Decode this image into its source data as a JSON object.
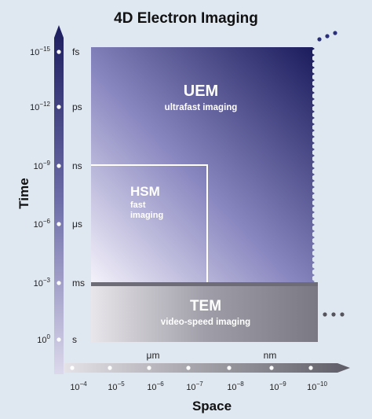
{
  "title": "4D Electron Imaging",
  "time_axis": {
    "label": "Time",
    "ticks": [
      {
        "base": "10",
        "exp": "−15",
        "unit": "fs"
      },
      {
        "base": "10",
        "exp": "−12",
        "unit": "ps"
      },
      {
        "base": "10",
        "exp": "−9",
        "unit": "ns"
      },
      {
        "base": "10",
        "exp": "−6",
        "unit": "μs"
      },
      {
        "base": "10",
        "exp": "−3",
        "unit": "ms"
      },
      {
        "base": "10",
        "exp": "0",
        "unit": "s"
      }
    ]
  },
  "space_axis": {
    "label": "Space",
    "units": [
      "μm",
      "nm"
    ],
    "ticks": [
      {
        "base": "10",
        "exp": "−4"
      },
      {
        "base": "10",
        "exp": "−5"
      },
      {
        "base": "10",
        "exp": "−6"
      },
      {
        "base": "10",
        "exp": "−7"
      },
      {
        "base": "10",
        "exp": "−8"
      },
      {
        "base": "10",
        "exp": "−9"
      },
      {
        "base": "10",
        "exp": "−10"
      }
    ]
  },
  "regions": [
    {
      "name": "UEM",
      "desc": [
        "ultrafast imaging"
      ]
    },
    {
      "name": "HSM",
      "desc": [
        "fast",
        "imaging"
      ]
    },
    {
      "name": "TEM",
      "desc": [
        "video-speed imaging"
      ]
    }
  ]
}
